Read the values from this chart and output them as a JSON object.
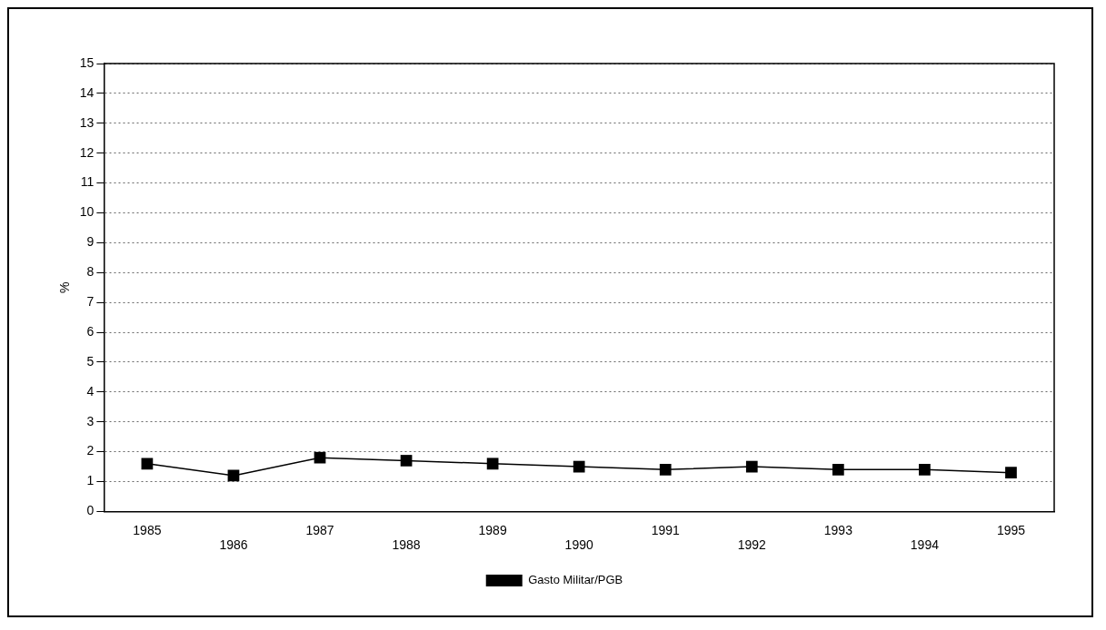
{
  "chart_data": {
    "type": "line",
    "ylabel": "%",
    "categories": [
      "1985",
      "1986",
      "1987",
      "1988",
      "1989",
      "1990",
      "1991",
      "1992",
      "1993",
      "1994",
      "1995"
    ],
    "series": [
      {
        "name": "Gasto Militar/PGB",
        "color": "#000000",
        "values": [
          1.6,
          1.2,
          1.8,
          1.7,
          1.6,
          1.5,
          1.4,
          1.5,
          1.4,
          1.4,
          1.3
        ]
      }
    ],
    "ylim": [
      0,
      15
    ],
    "yticks": [
      0,
      1,
      2,
      3,
      4,
      5,
      6,
      7,
      8,
      9,
      10,
      11,
      12,
      13,
      14,
      15
    ],
    "grid": "y",
    "legend": "bottom",
    "marker": "square",
    "line_style": "solid"
  }
}
